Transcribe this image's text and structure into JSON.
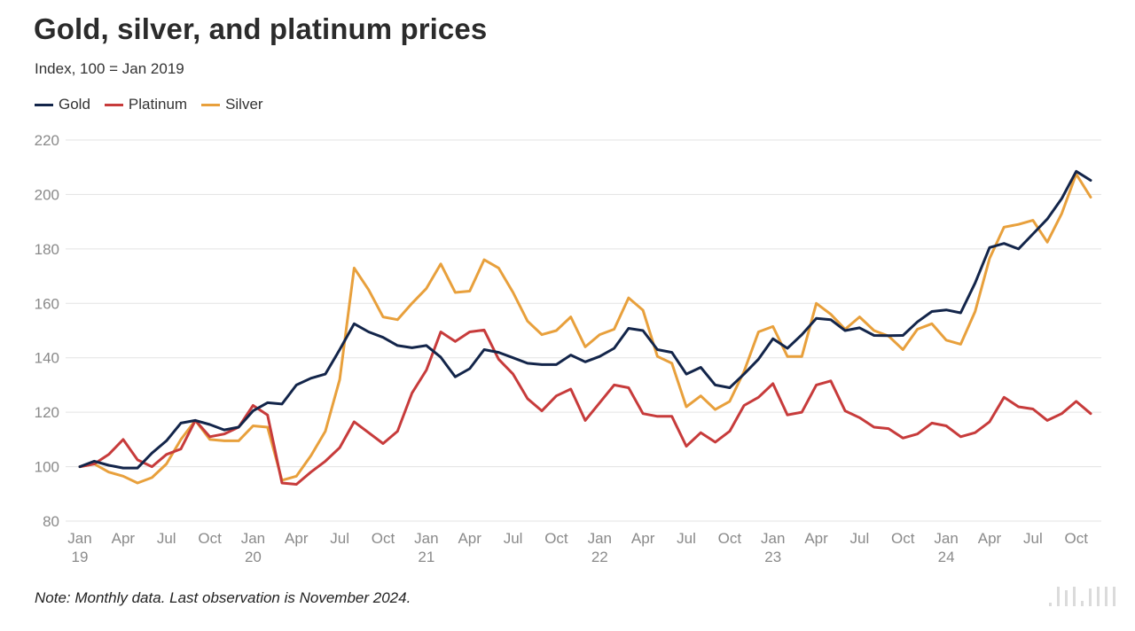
{
  "title": "Gold, silver, and platinum prices",
  "subtitle": "Index, 100 = Jan 2019",
  "note": "Note: Monthly data. Last observation is November 2024.",
  "colors": {
    "Gold": "#13254a",
    "Platinum": "#c73b3b",
    "Silver": "#e8a03c",
    "grid": "#e3e3e3"
  },
  "chart_data": {
    "type": "line",
    "ylim": [
      80,
      220
    ],
    "yticks": [
      80,
      100,
      120,
      140,
      160,
      180,
      200,
      220
    ],
    "grid": true,
    "legend_placement": "top-left",
    "x_start": "2019-01",
    "x_end": "2024-11",
    "x_ticks": [
      {
        "month": "2019-01",
        "label": "Jan",
        "sublabel": "19"
      },
      {
        "month": "2019-04",
        "label": "Apr",
        "sublabel": ""
      },
      {
        "month": "2019-07",
        "label": "Jul",
        "sublabel": ""
      },
      {
        "month": "2019-10",
        "label": "Oct",
        "sublabel": ""
      },
      {
        "month": "2020-01",
        "label": "Jan",
        "sublabel": "20"
      },
      {
        "month": "2020-04",
        "label": "Apr",
        "sublabel": ""
      },
      {
        "month": "2020-07",
        "label": "Jul",
        "sublabel": ""
      },
      {
        "month": "2020-10",
        "label": "Oct",
        "sublabel": ""
      },
      {
        "month": "2021-01",
        "label": "Jan",
        "sublabel": "21"
      },
      {
        "month": "2021-04",
        "label": "Apr",
        "sublabel": ""
      },
      {
        "month": "2021-07",
        "label": "Jul",
        "sublabel": ""
      },
      {
        "month": "2021-10",
        "label": "Oct",
        "sublabel": ""
      },
      {
        "month": "2022-01",
        "label": "Jan",
        "sublabel": "22"
      },
      {
        "month": "2022-04",
        "label": "Apr",
        "sublabel": ""
      },
      {
        "month": "2022-07",
        "label": "Jul",
        "sublabel": ""
      },
      {
        "month": "2022-10",
        "label": "Oct",
        "sublabel": ""
      },
      {
        "month": "2023-01",
        "label": "Jan",
        "sublabel": "23"
      },
      {
        "month": "2023-04",
        "label": "Apr",
        "sublabel": ""
      },
      {
        "month": "2023-07",
        "label": "Jul",
        "sublabel": ""
      },
      {
        "month": "2023-10",
        "label": "Oct",
        "sublabel": ""
      },
      {
        "month": "2024-01",
        "label": "Jan",
        "sublabel": "24"
      },
      {
        "month": "2024-04",
        "label": "Apr",
        "sublabel": ""
      },
      {
        "month": "2024-07",
        "label": "Jul",
        "sublabel": ""
      },
      {
        "month": "2024-10",
        "label": "Oct",
        "sublabel": ""
      }
    ],
    "series": [
      {
        "name": "Gold",
        "values": [
          100,
          102,
          100.5,
          99.5,
          99.5,
          105,
          109.5,
          116,
          117,
          115.5,
          113.5,
          114.5,
          120.5,
          123.5,
          123,
          130,
          132.5,
          134,
          143,
          152.5,
          149.5,
          147.5,
          144.5,
          143.7,
          144.5,
          140.2,
          133,
          136,
          143,
          142,
          140,
          138,
          137.5,
          137.5,
          141,
          138.5,
          140.5,
          143.5,
          150.8,
          150,
          143,
          142,
          134,
          136.5,
          130,
          129,
          134,
          139.5,
          147,
          143.5,
          148.5,
          154.5,
          154,
          150,
          151,
          148.2,
          148.1,
          148.2,
          153.2,
          157,
          157.6,
          156.5,
          167.5,
          180.5,
          182,
          180,
          185.5,
          191,
          198.5,
          208.5,
          205.2
        ]
      },
      {
        "name": "Platinum",
        "values": [
          100,
          101,
          104.5,
          110,
          102.5,
          100,
          104.5,
          106.5,
          117,
          111,
          112,
          114.5,
          122.5,
          119,
          94,
          93.5,
          98,
          102,
          107,
          116.5,
          112.5,
          108.5,
          113,
          127,
          135.5,
          149.5,
          146,
          149.5,
          150.2,
          139.5,
          134,
          125,
          120.5,
          126,
          128.5,
          117,
          123.5,
          130,
          129,
          119.5,
          118.5,
          118.5,
          107.5,
          112.5,
          109,
          113,
          122.5,
          125.5,
          130.5,
          119,
          120,
          130,
          131.5,
          120.5,
          118,
          114.5,
          114,
          110.5,
          112,
          116,
          115,
          111,
          112.5,
          116.5,
          125.5,
          122,
          121.2,
          117,
          119.5,
          124,
          119.5
        ]
      },
      {
        "name": "Silver",
        "values": [
          100,
          101,
          98,
          96.5,
          94,
          96,
          101,
          110,
          117,
          110,
          109.5,
          109.5,
          115,
          114.5,
          95,
          96.5,
          104,
          113,
          132,
          173,
          165,
          155,
          154,
          160,
          165.5,
          174.5,
          164,
          164.5,
          176,
          173,
          164,
          153.5,
          148.5,
          150,
          155,
          144,
          148.5,
          150.5,
          162,
          157.5,
          140.5,
          138,
          122,
          126,
          121,
          124,
          135,
          149.5,
          151.5,
          140.5,
          140.5,
          160,
          156,
          150.5,
          155,
          150,
          148,
          143,
          150.5,
          152.5,
          146.5,
          145,
          157,
          176.5,
          188,
          189,
          190.5,
          182.5,
          193,
          207.5,
          199
        ]
      }
    ]
  }
}
